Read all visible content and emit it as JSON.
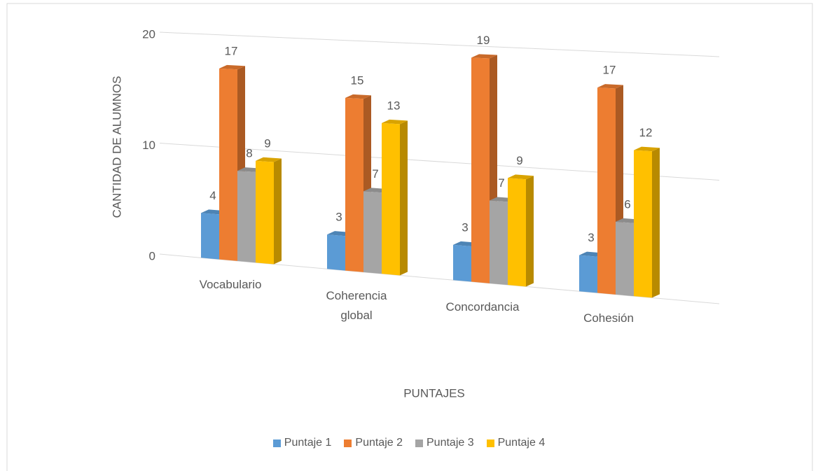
{
  "chart_data": {
    "type": "bar3d",
    "x_label": "PUNTAJES",
    "y_label": "CANTIDAD DE ALUMNOS",
    "categories": [
      "Vocabulario",
      "Coherencia global",
      "Concordancia",
      "Cohesión"
    ],
    "series": [
      {
        "name": "Puntaje 1",
        "color": "#5b9bd5",
        "values": [
          4,
          3,
          3,
          3
        ]
      },
      {
        "name": "Puntaje 2",
        "color": "#ed7d31",
        "values": [
          17,
          15,
          19,
          17
        ]
      },
      {
        "name": "Puntaje 3",
        "color": "#a5a5a5",
        "values": [
          8,
          7,
          7,
          6
        ]
      },
      {
        "name": "Puntaje 4",
        "color": "#ffc000",
        "values": [
          9,
          13,
          9,
          12
        ]
      }
    ],
    "ylim": [
      0,
      20
    ],
    "yticks": [
      0,
      10,
      20
    ],
    "grid": true,
    "legend": "bottom"
  }
}
